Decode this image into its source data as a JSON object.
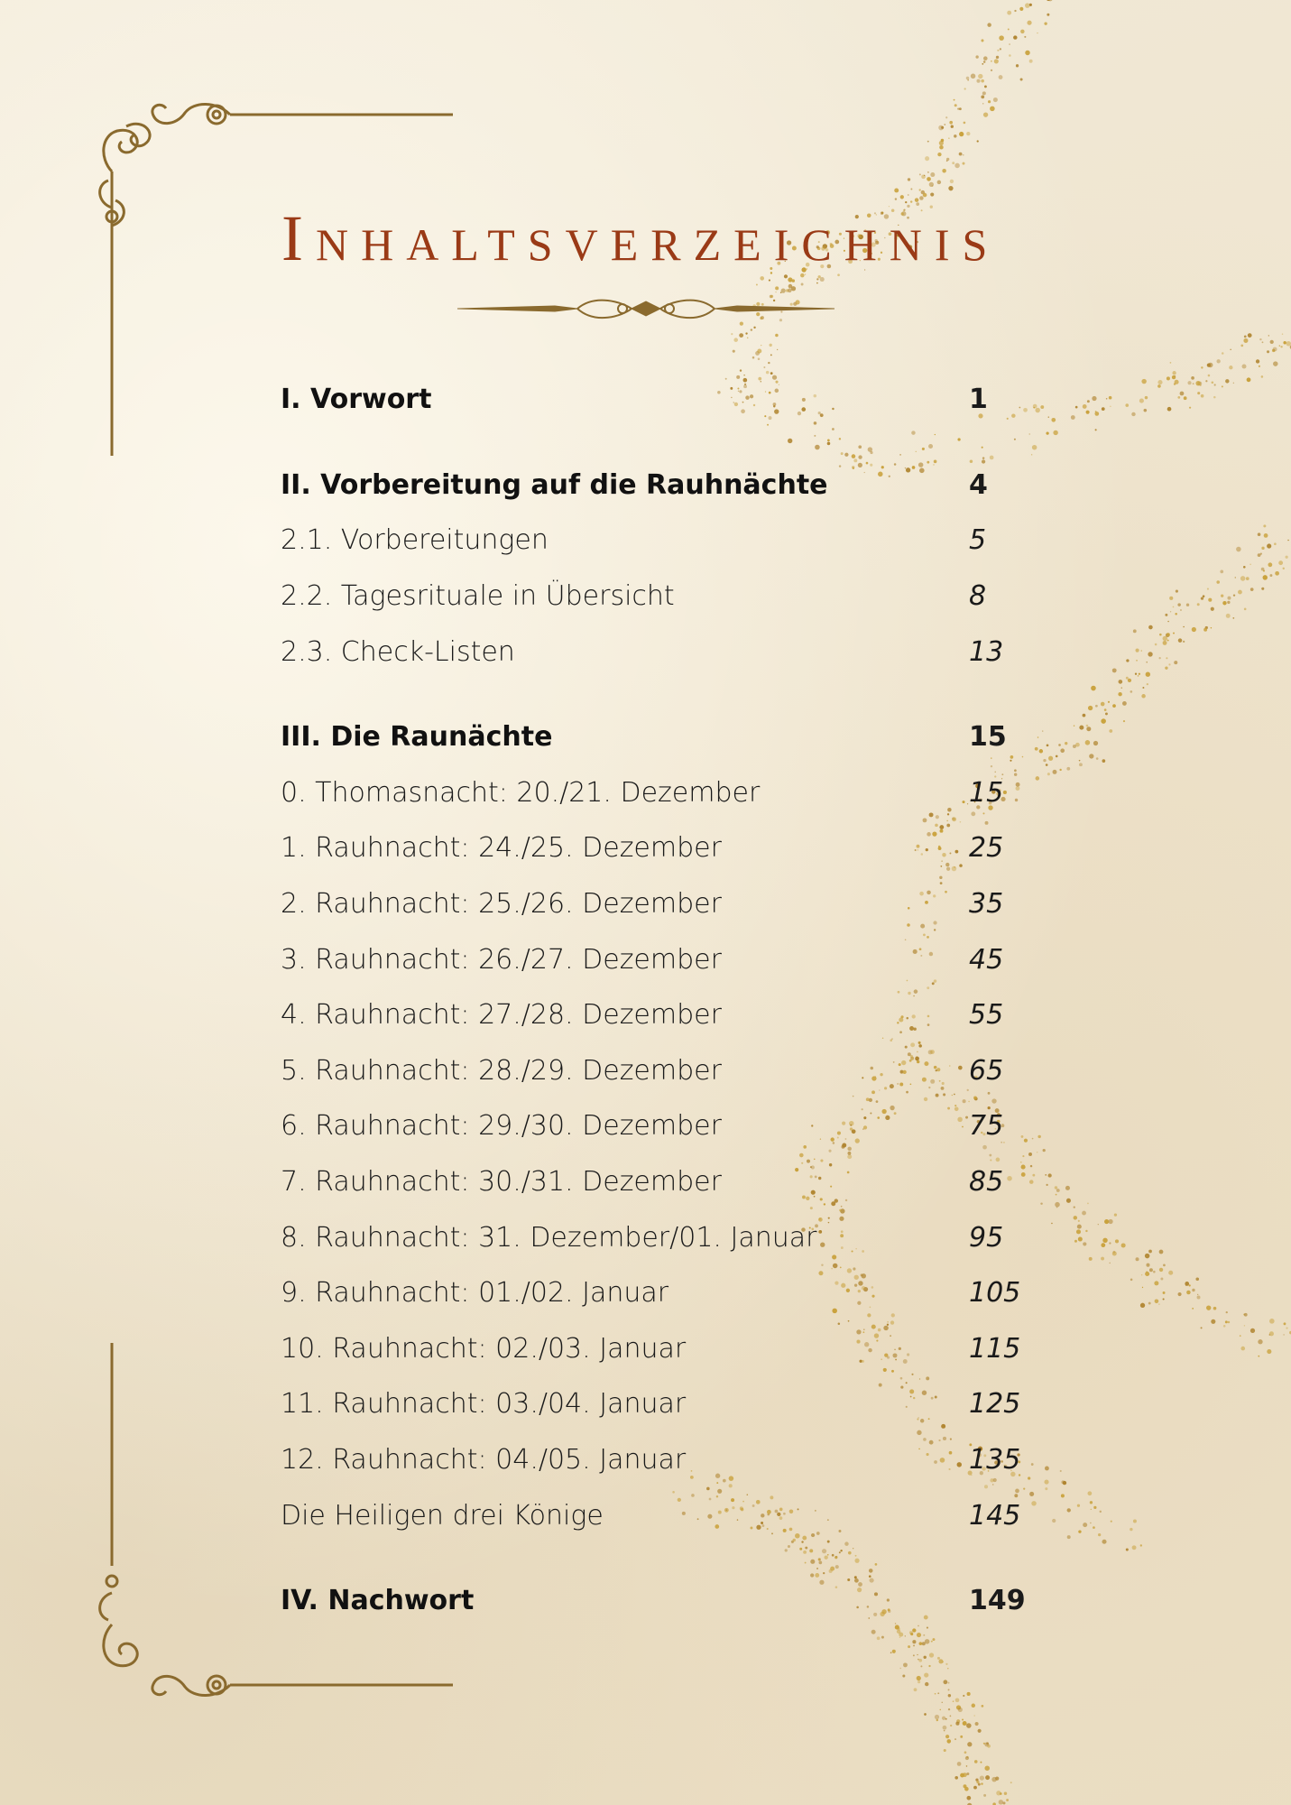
{
  "title": "Inhaltsverzeichnis",
  "colors": {
    "title": "#9a3a16",
    "ornament": "#8a6a2e",
    "gold": "#c9a13b",
    "paper": "#efe5cf"
  },
  "toc": [
    {
      "label": "I. Vorwort",
      "page": "1",
      "type": "section"
    },
    {
      "label": "II. Vorbereitung auf die Rauhnächte",
      "page": "4",
      "type": "section"
    },
    {
      "label": "2.1. Vorbereitungen",
      "page": "5",
      "type": "entry"
    },
    {
      "label": "2.2. Tagesrituale in Übersicht",
      "page": "8",
      "type": "entry"
    },
    {
      "label": "2.3. Check-Listen",
      "page": "13",
      "type": "entry"
    },
    {
      "label": "III. Die Raunächte",
      "page": "15",
      "type": "section"
    },
    {
      "label": "0. Thomasnacht: 20./21. Dezember",
      "page": "15",
      "type": "entry"
    },
    {
      "label": "1. Rauhnacht: 24./25. Dezember",
      "page": "25",
      "type": "entry"
    },
    {
      "label": "2. Rauhnacht: 25./26. Dezember",
      "page": "35",
      "type": "entry"
    },
    {
      "label": "3. Rauhnacht: 26./27. Dezember",
      "page": "45",
      "type": "entry"
    },
    {
      "label": "4. Rauhnacht: 27./28. Dezember",
      "page": "55",
      "type": "entry"
    },
    {
      "label": "5. Rauhnacht: 28./29. Dezember",
      "page": "65",
      "type": "entry"
    },
    {
      "label": "6. Rauhnacht: 29./30. Dezember",
      "page": "75",
      "type": "entry"
    },
    {
      "label": "7. Rauhnacht: 30./31. Dezember",
      "page": "85",
      "type": "entry"
    },
    {
      "label": "8. Rauhnacht: 31. Dezember/01. Januar",
      "page": "95",
      "type": "entry"
    },
    {
      "label": "9. Rauhnacht: 01./02. Januar",
      "page": "105",
      "type": "entry"
    },
    {
      "label": "10. Rauhnacht: 02./03. Januar",
      "page": "115",
      "type": "entry"
    },
    {
      "label": "11. Rauhnacht: 03./04. Januar",
      "page": "125",
      "type": "entry"
    },
    {
      "label": "12. Rauhnacht: 04./05. Januar",
      "page": "135",
      "type": "entry"
    },
    {
      "label": "Die Heiligen drei Könige",
      "page": "145",
      "type": "entry"
    },
    {
      "label": "IV. Nachwort",
      "page": "149",
      "type": "section"
    }
  ]
}
